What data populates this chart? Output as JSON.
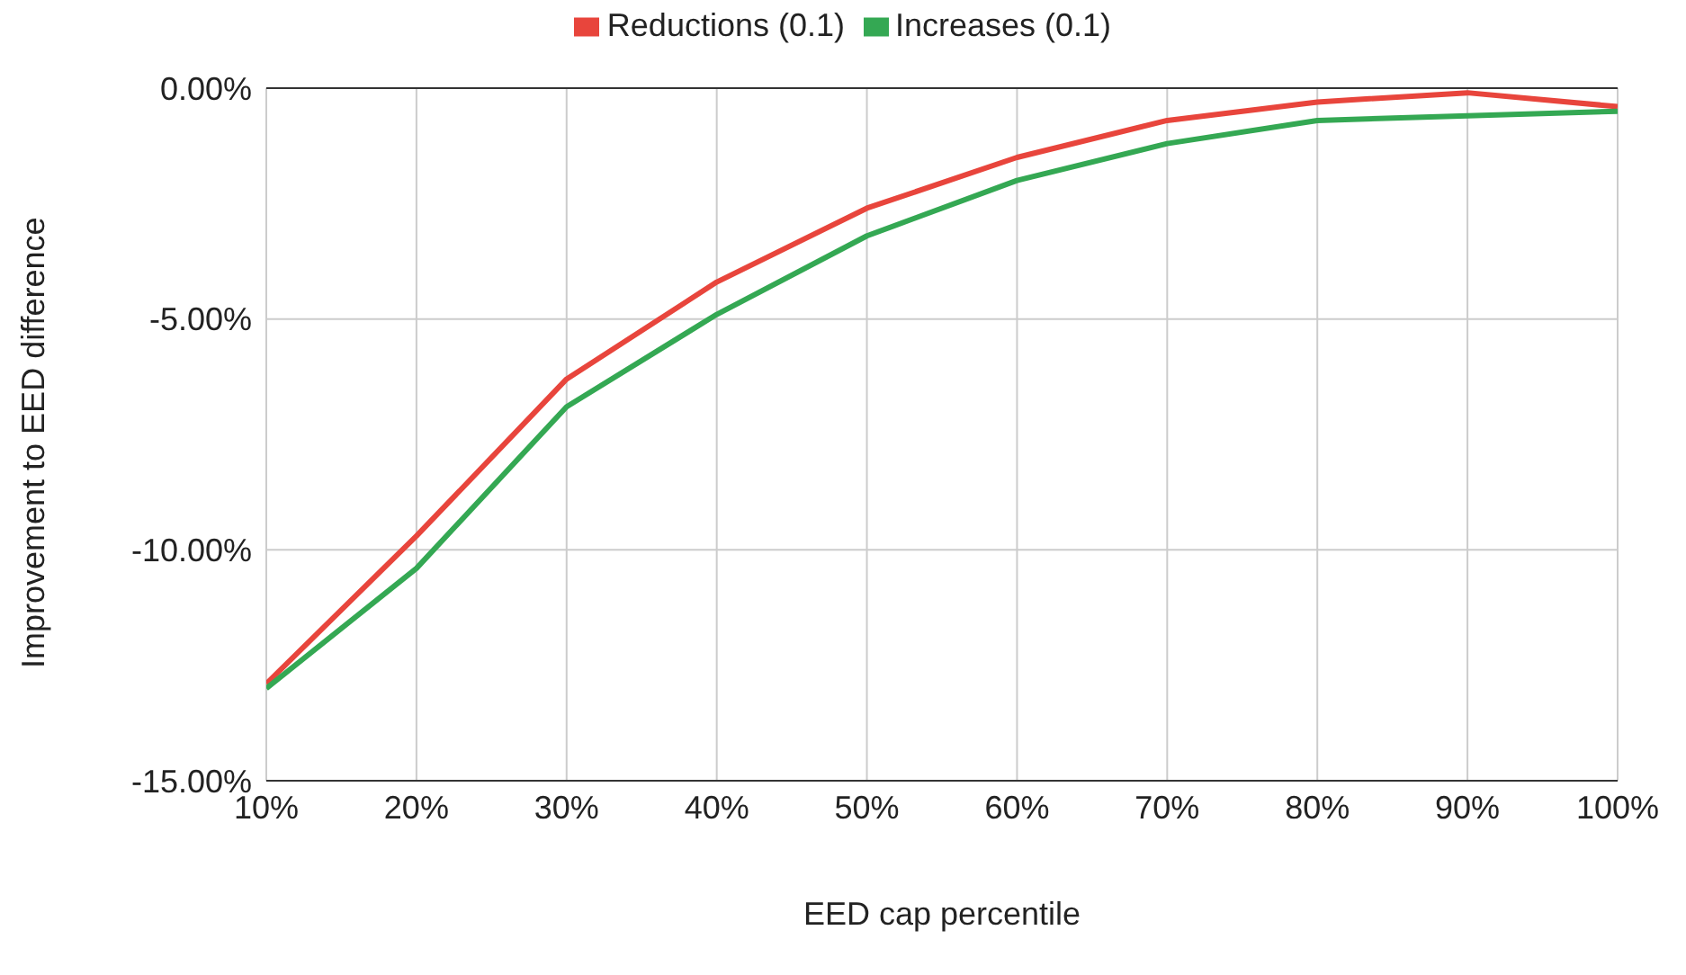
{
  "chart_data": {
    "type": "line",
    "xlabel": "EED cap percentile",
    "ylabel": "Improvement to EED difference",
    "x": [
      10,
      20,
      30,
      40,
      50,
      60,
      70,
      80,
      90,
      100
    ],
    "series": [
      {
        "name": "Reductions (0.1)",
        "color": "#e8453c",
        "values": [
          -12.9,
          -9.7,
          -6.3,
          -4.2,
          -2.6,
          -1.5,
          -0.7,
          -0.3,
          -0.1,
          -0.4
        ]
      },
      {
        "name": "Increases (0.1)",
        "color": "#34a853",
        "values": [
          -13.0,
          -10.4,
          -6.9,
          -4.9,
          -3.2,
          -2.0,
          -1.2,
          -0.7,
          -0.6,
          -0.5
        ]
      }
    ],
    "xlim": [
      10,
      100
    ],
    "xticks": [
      {
        "value": 10,
        "label": "10%"
      },
      {
        "value": 20,
        "label": "20%"
      },
      {
        "value": 30,
        "label": "30%"
      },
      {
        "value": 40,
        "label": "40%"
      },
      {
        "value": 50,
        "label": "50%"
      },
      {
        "value": 60,
        "label": "60%"
      },
      {
        "value": 70,
        "label": "70%"
      },
      {
        "value": 80,
        "label": "80%"
      },
      {
        "value": 90,
        "label": "90%"
      },
      {
        "value": 100,
        "label": "100%"
      }
    ],
    "ylim": [
      -15,
      0
    ],
    "yticks": [
      {
        "value": -15,
        "label": "-15.00%"
      },
      {
        "value": -10,
        "label": "-10.00%"
      },
      {
        "value": -5,
        "label": "-5.00%"
      },
      {
        "value": 0,
        "label": "0.00%"
      }
    ],
    "grid": true,
    "legend": "top",
    "marker": "none",
    "line_style": "solid"
  }
}
